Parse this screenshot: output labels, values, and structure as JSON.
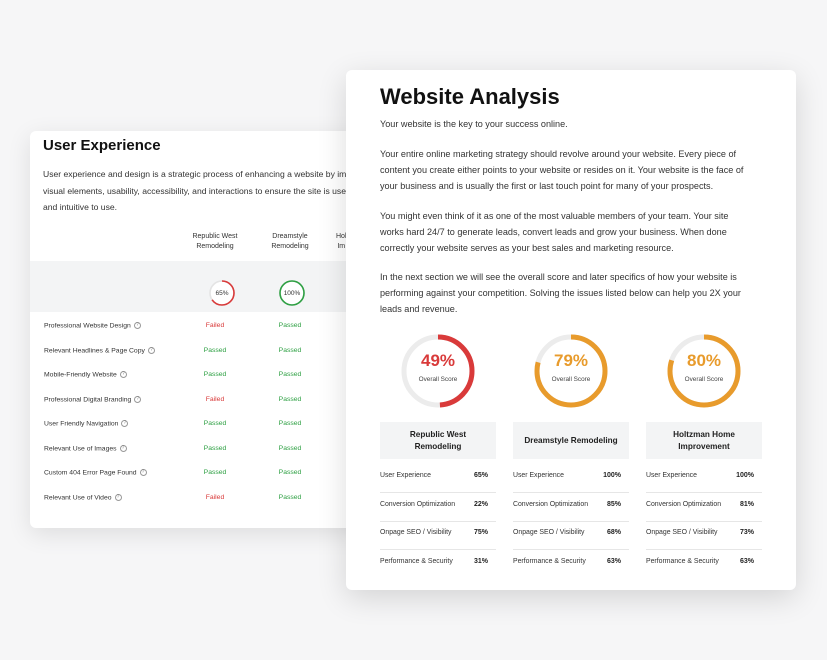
{
  "ux": {
    "title": "User Experience",
    "desc_lines": [
      "User experience and design is a strategic process of enhancing a website by imp",
      "visual elements, usability, accessibility, and interactions to ensure the site is use",
      "and intuitive to use."
    ],
    "columns": [
      {
        "line1": "Republic West",
        "line2": "Remodeling",
        "score": "65%",
        "ring_color": "#d93a3a",
        "ring_pct": 0.65
      },
      {
        "line1": "Dreamstyle",
        "line2": "Remodeling",
        "score": "100%",
        "ring_color": "#2ea043",
        "ring_pct": 1.0
      },
      {
        "line1": "Hol",
        "line2": "Im",
        "score": "",
        "ring_color": "#2ea043",
        "ring_pct": 1.0
      }
    ],
    "rows": [
      {
        "label": "Professional Website Design",
        "c1": "Failed",
        "c2": "Passed"
      },
      {
        "label": "Relevant Headlines & Page Copy",
        "c1": "Passed",
        "c2": "Passed"
      },
      {
        "label": "Mobile-Friendly Website",
        "c1": "Passed",
        "c2": "Passed"
      },
      {
        "label": "Professional Digital Branding",
        "c1": "Failed",
        "c2": "Passed"
      },
      {
        "label": "User Friendly Navigation",
        "c1": "Passed",
        "c2": "Passed"
      },
      {
        "label": "Relevant Use of Images",
        "c1": "Passed",
        "c2": "Passed"
      },
      {
        "label": "Custom 404 Error Page Found",
        "c1": "Passed",
        "c2": "Passed"
      },
      {
        "label": "Relevant Use of Video",
        "c1": "Failed",
        "c2": "Passed"
      }
    ],
    "help_glyph": "?"
  },
  "wa": {
    "title": "Website Analysis",
    "intro": "Your website is the key to your success online.",
    "p1": [
      "Your entire online marketing strategy should revolve around your website. Every piece of",
      "content you create either points to your website or resides on it. Your website is the face of",
      "your business and is usually the first or last touch point for many of your prospects."
    ],
    "p2": [
      "You might even think of it as one of the most valuable members of your team. Your site",
      "works hard 24/7 to generate leads, convert leads and grow your business. When done",
      "correctly your website serves as your best sales and marketing resource."
    ],
    "p3": [
      "In the next section we will see the overall score and later specifics of how your website is",
      "performing against your competition. Solving the issues listed below can help you 2X your",
      "leads and revenue."
    ],
    "gauge_sub": "Overall Score",
    "competitors": [
      {
        "name_l1": "Republic West",
        "name_l2": "Remodeling",
        "score": "49%",
        "score_pct": 0.49,
        "color": "#d93a3a",
        "metrics": [
          {
            "name": "User Experience",
            "value": "65%"
          },
          {
            "name": "Conversion Optimization",
            "value": "22%"
          },
          {
            "name": "Onpage SEO / Visibility",
            "value": "75%"
          },
          {
            "name": "Performance & Security",
            "value": "31%"
          }
        ]
      },
      {
        "name_l1": "Dreamstyle Remodeling",
        "name_l2": "",
        "score": "79%",
        "score_pct": 0.79,
        "color": "#e89b2c",
        "metrics": [
          {
            "name": "User Experience",
            "value": "100%"
          },
          {
            "name": "Conversion Optimization",
            "value": "85%"
          },
          {
            "name": "Onpage SEO / Visibility",
            "value": "68%"
          },
          {
            "name": "Performance & Security",
            "value": "63%"
          }
        ]
      },
      {
        "name_l1": "Holtzman Home",
        "name_l2": "Improvement",
        "score": "80%",
        "score_pct": 0.8,
        "color": "#e89b2c",
        "metrics": [
          {
            "name": "User Experience",
            "value": "100%"
          },
          {
            "name": "Conversion Optimization",
            "value": "81%"
          },
          {
            "name": "Onpage SEO / Visibility",
            "value": "73%"
          },
          {
            "name": "Performance & Security",
            "value": "63%"
          }
        ]
      }
    ]
  }
}
